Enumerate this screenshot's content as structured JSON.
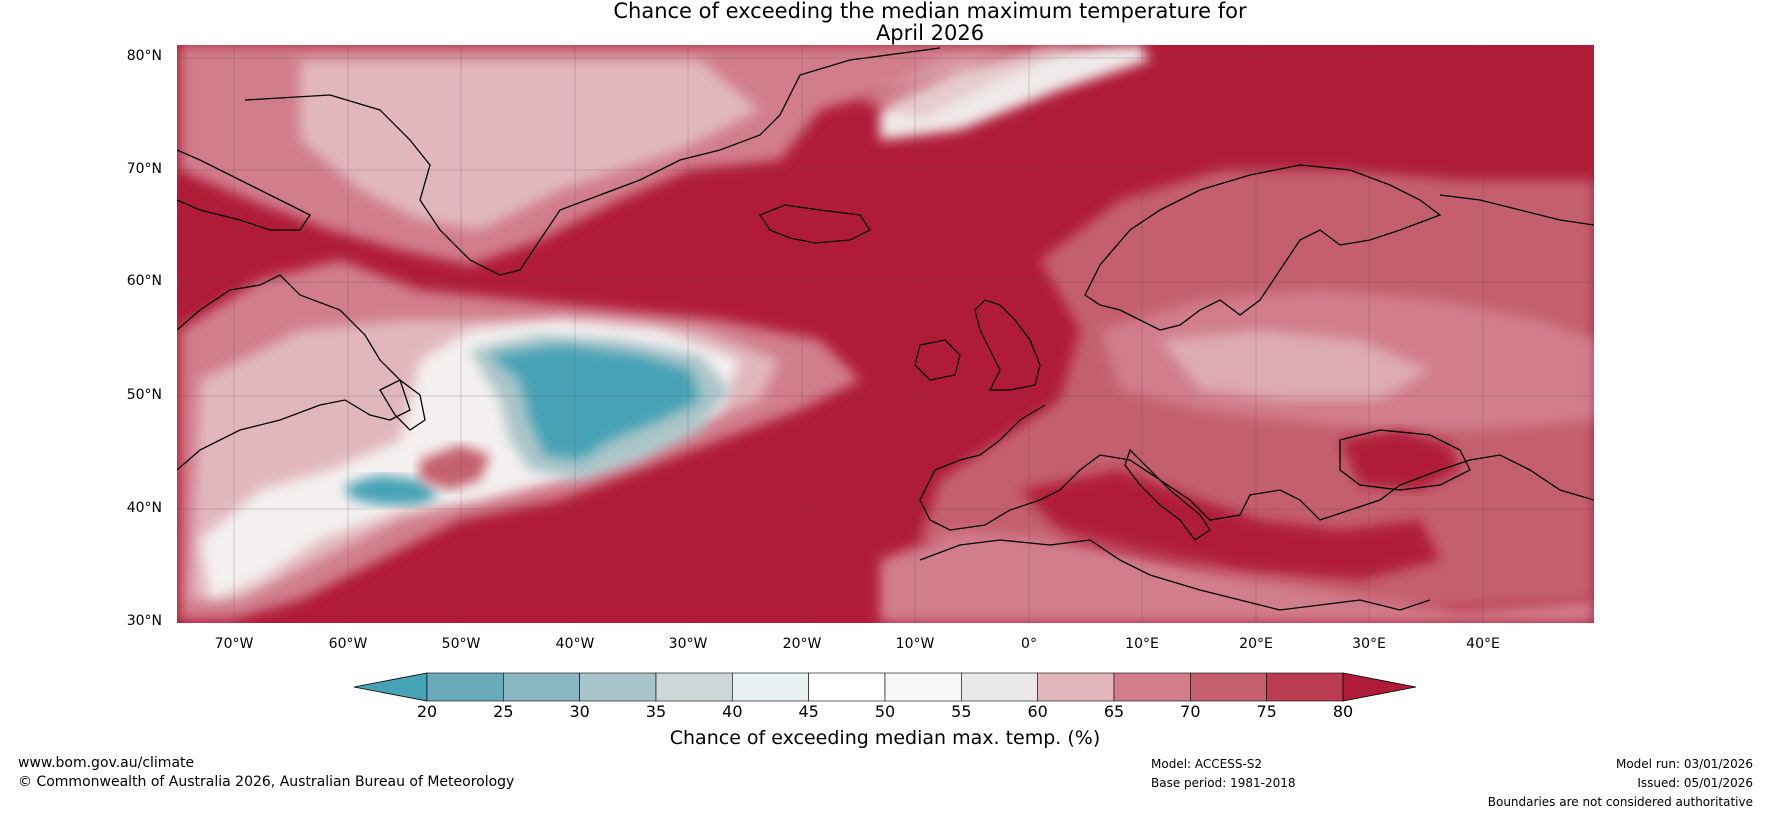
{
  "title": {
    "line1": "Chance of exceeding the median maximum temperature for",
    "line2": "April 2026"
  },
  "map": {
    "lat_labels": [
      "80°N",
      "70°N",
      "60°N",
      "50°N",
      "40°N",
      "30°N"
    ],
    "lon_labels": [
      "70°W",
      "60°W",
      "50°W",
      "40°W",
      "30°W",
      "20°W",
      "10°W",
      "0°",
      "10°E",
      "20°E",
      "30°E",
      "40°E"
    ],
    "region": "North Atlantic and Europe"
  },
  "colorbar": {
    "ticks": [
      "20",
      "25",
      "30",
      "35",
      "40",
      "45",
      "50",
      "55",
      "60",
      "65",
      "70",
      "75",
      "80"
    ],
    "colors": [
      "#46a2b5",
      "#6baab9",
      "#8ab6c2",
      "#aac5c9",
      "#ced7d7",
      "#e8f0f1",
      "#ffffff",
      "#f8f8f8",
      "#ebe8e8",
      "#e1b7bd",
      "#d17d8c",
      "#c4606d",
      "#bb3c50",
      "#b01c38"
    ],
    "label": "Chance of exceeding median max. temp. (%)"
  },
  "footer": {
    "website": "www.bom.gov.au/climate",
    "copyright": "© Commonwealth of Australia 2026, Australian Bureau of Meteorology",
    "model": "Model: ACCESS-S2",
    "base_period": "Base period: 1981-2018",
    "model_run": "Model run: 03/01/2026",
    "issued": "Issued: 05/01/2026",
    "disclaimer": "Boundaries are not considered authoritative"
  }
}
